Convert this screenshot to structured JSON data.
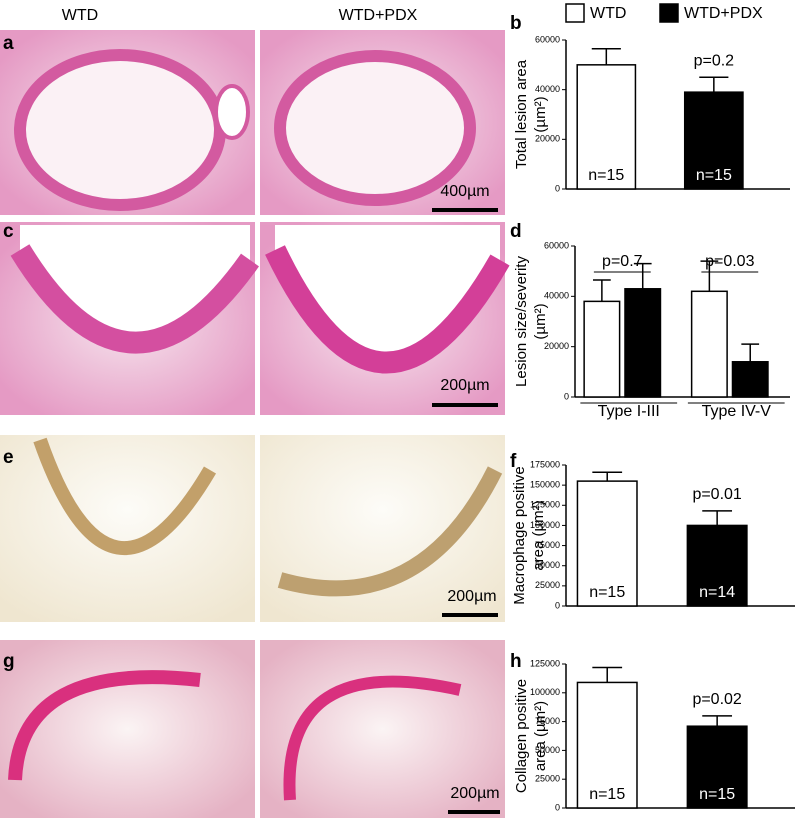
{
  "figure": {
    "columns": [
      "WTD",
      "WTD+PDX"
    ],
    "letters": [
      "a",
      "b",
      "c",
      "d",
      "e",
      "f",
      "g",
      "h"
    ],
    "scale_bars": [
      "400µm",
      "200µm",
      "200µm",
      "200µm"
    ]
  },
  "chart_data": [
    {
      "type": "bar",
      "ylabel": [
        "Total lesion area",
        "(µm²)"
      ],
      "categories": [
        null
      ],
      "series": [
        {
          "name": "WTD",
          "color": "#ffffff",
          "values": [
            50000
          ],
          "errors": [
            6500
          ],
          "labels": [
            "n=15"
          ]
        },
        {
          "name": "WTD+PDX",
          "color": "#000000",
          "values": [
            39000
          ],
          "errors": [
            6000
          ],
          "labels": [
            "n=15"
          ]
        }
      ],
      "annotations": [
        "p=0.2"
      ],
      "ylim": [
        0,
        60000
      ],
      "yticks": [
        0,
        20000,
        40000,
        60000
      ]
    },
    {
      "type": "bar",
      "ylabel": [
        "Lesion size/severity",
        "(µm²)"
      ],
      "categories": [
        "Type I-III",
        "Type IV-V"
      ],
      "series": [
        {
          "color": "#ffffff",
          "values": [
            38000,
            42000
          ],
          "errors": [
            8500,
            12000
          ]
        },
        {
          "color": "#000000",
          "values": [
            43000,
            14000
          ],
          "errors": [
            10000,
            7000
          ]
        }
      ],
      "annotations": [
        "p=0.7",
        "p=0.03"
      ],
      "ylim": [
        0,
        60000
      ],
      "yticks": [
        0,
        20000,
        40000,
        60000
      ]
    },
    {
      "type": "bar",
      "ylabel": [
        "Macrophage positive",
        "area (µm²)"
      ],
      "categories": [
        null
      ],
      "series": [
        {
          "color": "#ffffff",
          "values": [
            155000
          ],
          "errors": [
            11000
          ],
          "labels": [
            "n=15"
          ]
        },
        {
          "color": "#000000",
          "values": [
            100000
          ],
          "errors": [
            18000
          ],
          "labels": [
            "n=14"
          ]
        }
      ],
      "annotations": [
        "p=0.01"
      ],
      "ylim": [
        0,
        175000
      ],
      "yticks": [
        0,
        25000,
        50000,
        75000,
        100000,
        125000,
        150000,
        175000
      ]
    },
    {
      "type": "bar",
      "ylabel": [
        "Collagen positive",
        "area (µm²)"
      ],
      "categories": [
        null
      ],
      "series": [
        {
          "color": "#ffffff",
          "values": [
            109000
          ],
          "errors": [
            13000
          ],
          "labels": [
            "n=15"
          ]
        },
        {
          "color": "#000000",
          "values": [
            71000
          ],
          "errors": [
            9000
          ],
          "labels": [
            "n=15"
          ]
        }
      ],
      "annotations": [
        "p=0.02"
      ],
      "ylim": [
        0,
        125000
      ],
      "yticks": [
        0,
        25000,
        50000,
        75000,
        100000,
        125000
      ]
    }
  ]
}
